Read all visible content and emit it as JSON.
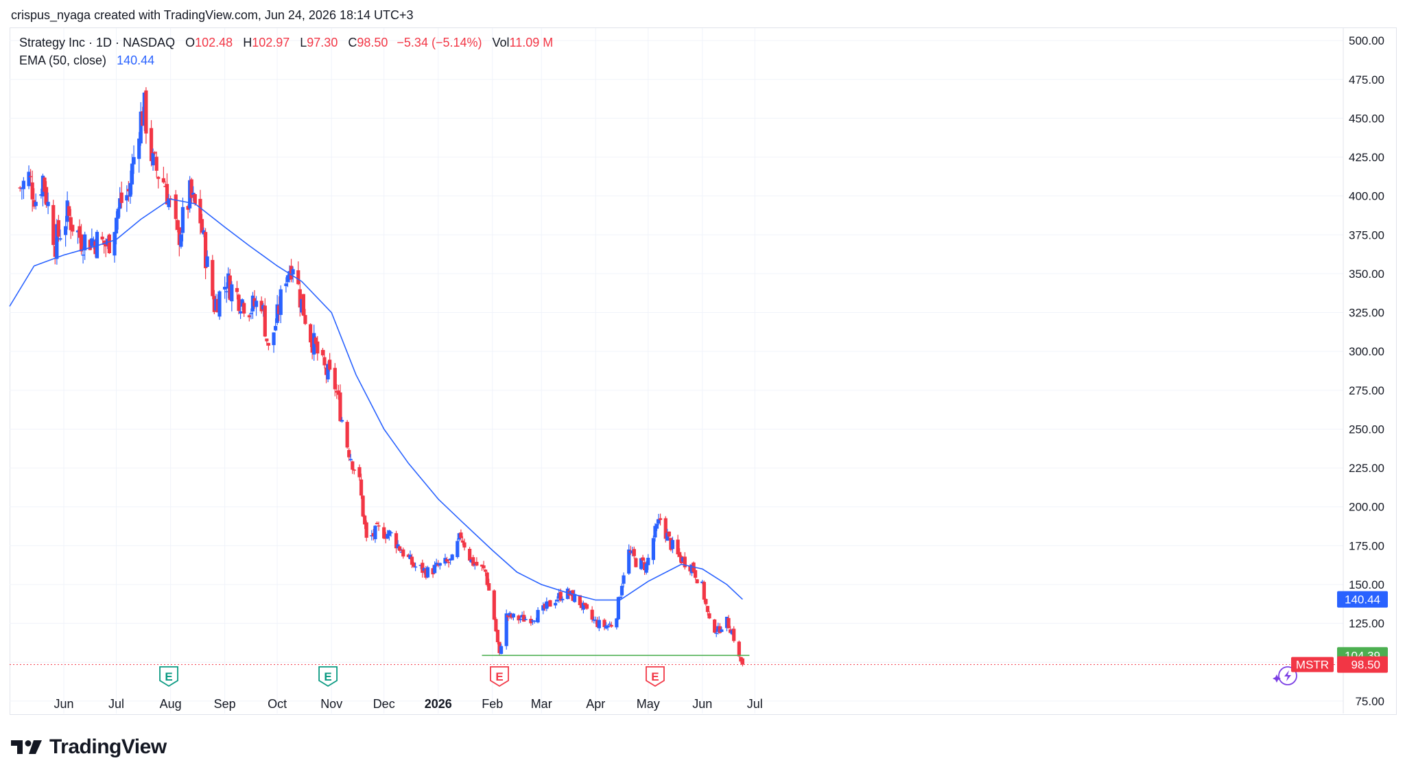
{
  "attribution": "crispus_nyaga created with TradingView.com, Jun 24, 2026 18:14 UTC+3",
  "legend": {
    "symbol_title": "Strategy Inc · 1D · NASDAQ",
    "open_key": "O",
    "open": "102.48",
    "high_key": "H",
    "high": "102.97",
    "low_key": "L",
    "low": "97.30",
    "close_key": "C",
    "close": "98.50",
    "change": "−5.34 (−5.14%)",
    "vol_key": "Vol",
    "volume": "11.09 M",
    "ema_title": "EMA (50, close)",
    "ema_value": "140.44"
  },
  "footer": {
    "brand": "TradingView"
  },
  "colors": {
    "up": "#2962ff",
    "down": "#f23645",
    "ema": "#2962ff",
    "support": "#4caf50",
    "grid": "#f0f3fa",
    "text": "#131722"
  },
  "chart_data": {
    "type": "candlestick",
    "x_type": "date",
    "x_ticks": [
      "Jun",
      "Jul",
      "Aug",
      "Sep",
      "Oct",
      "Nov",
      "Dec",
      "2026",
      "Feb",
      "Mar",
      "Apr",
      "May",
      "Jun",
      "Jul"
    ],
    "y_ticks": [
      "75.00",
      "100.00",
      "125.00",
      "150.00",
      "175.00",
      "200.00",
      "225.00",
      "250.00",
      "275.00",
      "300.00",
      "325.00",
      "350.00",
      "375.00",
      "400.00",
      "425.00",
      "450.00",
      "475.00",
      "500.00"
    ],
    "ylim": [
      67,
      508
    ],
    "y_axis_side": "right",
    "grid": true,
    "price_series": {
      "anchors": [
        [
          "2025-05-07",
          405
        ],
        [
          "2025-05-12",
          412
        ],
        [
          "2025-05-16",
          398
        ],
        [
          "2025-05-20",
          412
        ],
        [
          "2025-05-27",
          370
        ],
        [
          "2025-06-03",
          388
        ],
        [
          "2025-06-11",
          372
        ],
        [
          "2025-06-18",
          372
        ],
        [
          "2025-06-26",
          368
        ],
        [
          "2025-07-03",
          395
        ],
        [
          "2025-07-08",
          402
        ],
        [
          "2025-07-14",
          448
        ],
        [
          "2025-07-17",
          455
        ],
        [
          "2025-07-22",
          420
        ],
        [
          "2025-07-29",
          408
        ],
        [
          "2025-08-05",
          372
        ],
        [
          "2025-08-12",
          400
        ],
        [
          "2025-08-18",
          385
        ],
        [
          "2025-08-22",
          355
        ],
        [
          "2025-08-26",
          330
        ],
        [
          "2025-09-02",
          345
        ],
        [
          "2025-09-09",
          335
        ],
        [
          "2025-09-16",
          328
        ],
        [
          "2025-09-22",
          333
        ],
        [
          "2025-09-26",
          300
        ],
        [
          "2025-10-01",
          322
        ],
        [
          "2025-10-06",
          350
        ],
        [
          "2025-10-10",
          358
        ],
        [
          "2025-10-14",
          335
        ],
        [
          "2025-10-20",
          310
        ],
        [
          "2025-10-27",
          290
        ],
        [
          "2025-11-03",
          278
        ],
        [
          "2025-11-10",
          240
        ],
        [
          "2025-11-17",
          215
        ],
        [
          "2025-11-21",
          178
        ],
        [
          "2025-11-28",
          185
        ],
        [
          "2025-12-05",
          182
        ],
        [
          "2025-12-11",
          172
        ],
        [
          "2025-12-18",
          162
        ],
        [
          "2025-12-26",
          158
        ],
        [
          "2026-01-02",
          162
        ],
        [
          "2026-01-09",
          165
        ],
        [
          "2026-01-14",
          182
        ],
        [
          "2026-01-20",
          165
        ],
        [
          "2026-01-28",
          158
        ],
        [
          "2026-02-02",
          128
        ],
        [
          "2026-02-05",
          104
        ],
        [
          "2026-02-08",
          130
        ],
        [
          "2026-02-15",
          128
        ],
        [
          "2026-02-22",
          128
        ],
        [
          "2026-03-01",
          132
        ],
        [
          "2026-03-08",
          140
        ],
        [
          "2026-03-15",
          145
        ],
        [
          "2026-03-22",
          140
        ],
        [
          "2026-03-29",
          128
        ],
        [
          "2026-04-05",
          123
        ],
        [
          "2026-04-12",
          125
        ],
        [
          "2026-04-15",
          145
        ],
        [
          "2026-04-19",
          172
        ],
        [
          "2026-04-24",
          165
        ],
        [
          "2026-04-30",
          162
        ],
        [
          "2026-05-04",
          180
        ],
        [
          "2026-05-08",
          192
        ],
        [
          "2026-05-13",
          178
        ],
        [
          "2026-05-18",
          168
        ],
        [
          "2026-05-26",
          162
        ],
        [
          "2026-06-01",
          148
        ],
        [
          "2026-06-05",
          125
        ],
        [
          "2026-06-10",
          120
        ],
        [
          "2026-06-14",
          128
        ],
        [
          "2026-06-18",
          120
        ],
        [
          "2026-06-22",
          102.5
        ],
        [
          "2026-06-24",
          98.5
        ]
      ]
    },
    "ema": {
      "name": "EMA (50, close)",
      "points": [
        [
          "2025-05-01",
          329
        ],
        [
          "2025-05-15",
          355
        ],
        [
          "2025-06-01",
          362
        ],
        [
          "2025-06-20",
          368
        ],
        [
          "2025-07-01",
          372
        ],
        [
          "2025-07-15",
          385
        ],
        [
          "2025-08-01",
          398
        ],
        [
          "2025-08-15",
          395
        ],
        [
          "2025-09-01",
          380
        ],
        [
          "2025-09-15",
          368
        ],
        [
          "2025-10-01",
          355
        ],
        [
          "2025-10-15",
          345
        ],
        [
          "2025-11-01",
          325
        ],
        [
          "2025-11-15",
          285
        ],
        [
          "2025-12-01",
          250
        ],
        [
          "2025-12-15",
          228
        ],
        [
          "2026-01-01",
          205
        ],
        [
          "2026-01-15",
          190
        ],
        [
          "2026-02-01",
          172
        ],
        [
          "2026-02-15",
          158
        ],
        [
          "2026-03-01",
          150
        ],
        [
          "2026-03-15",
          145
        ],
        [
          "2026-04-01",
          140
        ],
        [
          "2026-04-15",
          140
        ],
        [
          "2026-05-01",
          152
        ],
        [
          "2026-05-20",
          163
        ],
        [
          "2026-06-01",
          160
        ],
        [
          "2026-06-15",
          150
        ],
        [
          "2026-06-24",
          140.44
        ]
      ]
    },
    "support_line": {
      "value": 104.39,
      "from": "2026-01-26",
      "to": "2026-06-24"
    },
    "last_price": 98.5,
    "earnings_markers": [
      {
        "date": "2025-07-31",
        "kind": "past",
        "label": "E"
      },
      {
        "date": "2025-10-30",
        "kind": "past",
        "label": "E"
      },
      {
        "date": "2026-02-05",
        "kind": "future",
        "label": "E"
      },
      {
        "date": "2026-05-05",
        "kind": "future",
        "label": "E"
      }
    ],
    "price_labels": [
      {
        "value": 140.44,
        "text": "140.44",
        "color": "#2962ff"
      },
      {
        "value": 104.39,
        "text": "104.39",
        "color": "#4caf50"
      },
      {
        "value": 98.5,
        "text": "98.50",
        "color": "#f23645",
        "ticker": "MSTR"
      }
    ]
  }
}
